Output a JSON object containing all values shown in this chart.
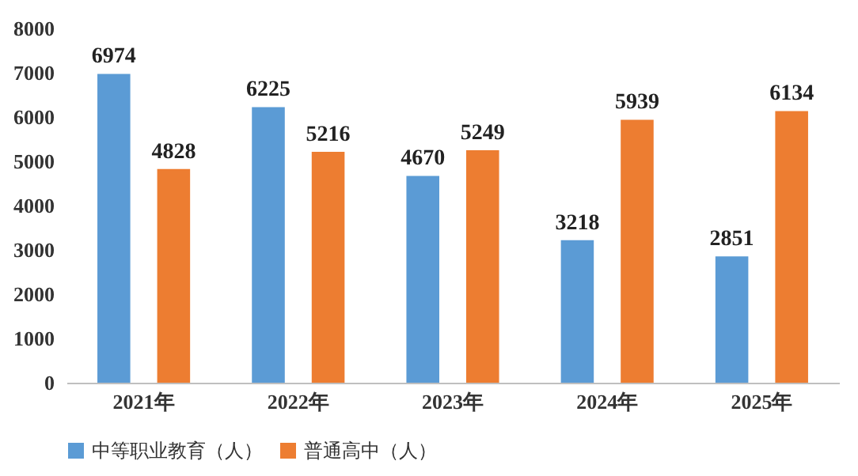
{
  "chart_data": {
    "type": "bar",
    "categories": [
      "2021年",
      "2022年",
      "2023年",
      "2024年",
      "2025年"
    ],
    "series": [
      {
        "name": "中等职业教育（人）",
        "color": "#5b9bd5",
        "values": [
          6974,
          6225,
          4670,
          3218,
          2851
        ]
      },
      {
        "name": "普通高中（人）",
        "color": "#ed7d31",
        "values": [
          4828,
          5216,
          5249,
          5939,
          6134
        ]
      }
    ],
    "ylim": [
      0,
      8000
    ],
    "yticks": [
      0,
      1000,
      2000,
      3000,
      4000,
      5000,
      6000,
      7000,
      8000
    ],
    "data_labels": true,
    "legend": "bottom",
    "grid": false
  }
}
